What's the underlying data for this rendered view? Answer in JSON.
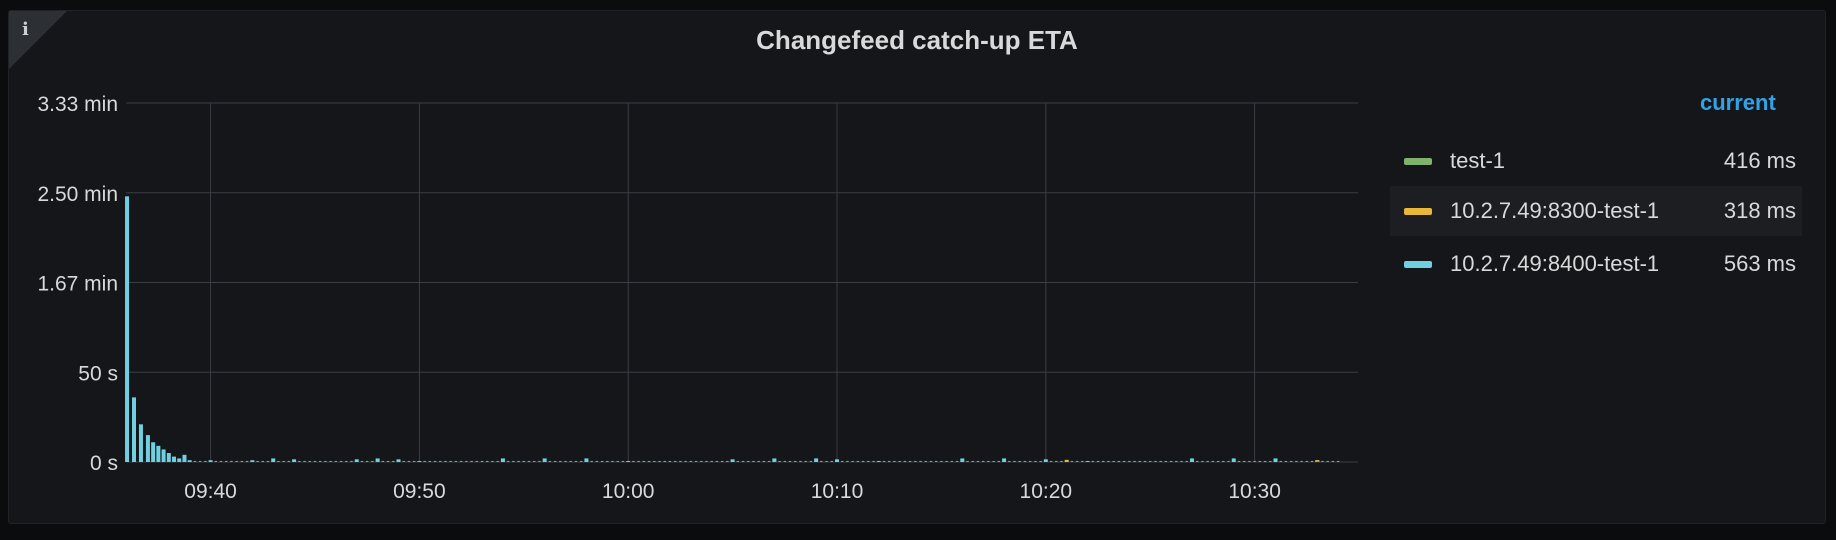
{
  "panel": {
    "title": "Changefeed catch-up ETA",
    "info_icon": "info-icon"
  },
  "legend": {
    "header": "current",
    "items": [
      {
        "name": "test-1",
        "value": "416 ms",
        "color": "#7eb26d"
      },
      {
        "name": "10.2.7.49:8300-test-1",
        "value": "318 ms",
        "color": "#eab839"
      },
      {
        "name": "10.2.7.49:8400-test-1",
        "value": "563 ms",
        "color": "#6ed0e0"
      }
    ]
  },
  "chart_data": {
    "type": "bar",
    "title": "Changefeed catch-up ETA",
    "xlabel": "",
    "ylabel": "",
    "y_unit": "seconds",
    "ylim": [
      0,
      200
    ],
    "y_ticks": [
      {
        "value": 200,
        "label": "3.33 min"
      },
      {
        "value": 150,
        "label": "2.50 min"
      },
      {
        "value": 100,
        "label": "1.67 min"
      },
      {
        "value": 50,
        "label": "50 s"
      },
      {
        "value": 0,
        "label": "0 s"
      }
    ],
    "x_start": "09:36",
    "x_end": "10:34",
    "x_ticks": [
      "09:40",
      "09:50",
      "10:00",
      "10:10",
      "10:20",
      "10:30"
    ],
    "grid": true,
    "legend_position": "right",
    "series": [
      {
        "name": "10.2.7.49:8400-test-1",
        "color": "#6ed0e0",
        "points": [
          [
            "09:36",
            148
          ],
          [
            "09:36",
            36
          ],
          [
            "09:36",
            21
          ],
          [
            "09:37",
            15
          ],
          [
            "09:37",
            11
          ],
          [
            "09:37",
            9
          ],
          [
            "09:37",
            7
          ],
          [
            "09:38",
            5
          ],
          [
            "09:38",
            3
          ],
          [
            "09:38",
            2
          ],
          [
            "09:38",
            4
          ],
          [
            "09:39",
            1
          ],
          [
            "09:40",
            1
          ],
          [
            "09:42",
            1
          ],
          [
            "09:43",
            2
          ],
          [
            "09:44",
            1.5
          ],
          [
            "09:47",
            1.5
          ],
          [
            "09:48",
            2
          ],
          [
            "09:49",
            1.5
          ],
          [
            "09:50",
            0.5
          ],
          [
            "09:54",
            2
          ],
          [
            "09:56",
            2
          ],
          [
            "09:58",
            2
          ],
          [
            "10:00",
            0.5
          ],
          [
            "10:05",
            1.5
          ],
          [
            "10:07",
            2
          ],
          [
            "10:09",
            2
          ],
          [
            "10:10",
            1.5
          ],
          [
            "10:12",
            0.5
          ],
          [
            "10:16",
            2
          ],
          [
            "10:18",
            2
          ],
          [
            "10:20",
            1.5
          ],
          [
            "10:22",
            0.5
          ],
          [
            "10:27",
            2
          ],
          [
            "10:29",
            2
          ],
          [
            "10:31",
            2
          ],
          [
            "10:33",
            1
          ]
        ]
      },
      {
        "name": "10.2.7.49:8300-test-1",
        "color": "#eab839",
        "points": [
          [
            "10:21",
            1.2
          ],
          [
            "10:33",
            1
          ]
        ]
      },
      {
        "name": "test-1",
        "color": "#7eb26d",
        "points": [
          [
            "10:33",
            0.5
          ]
        ]
      }
    ]
  }
}
